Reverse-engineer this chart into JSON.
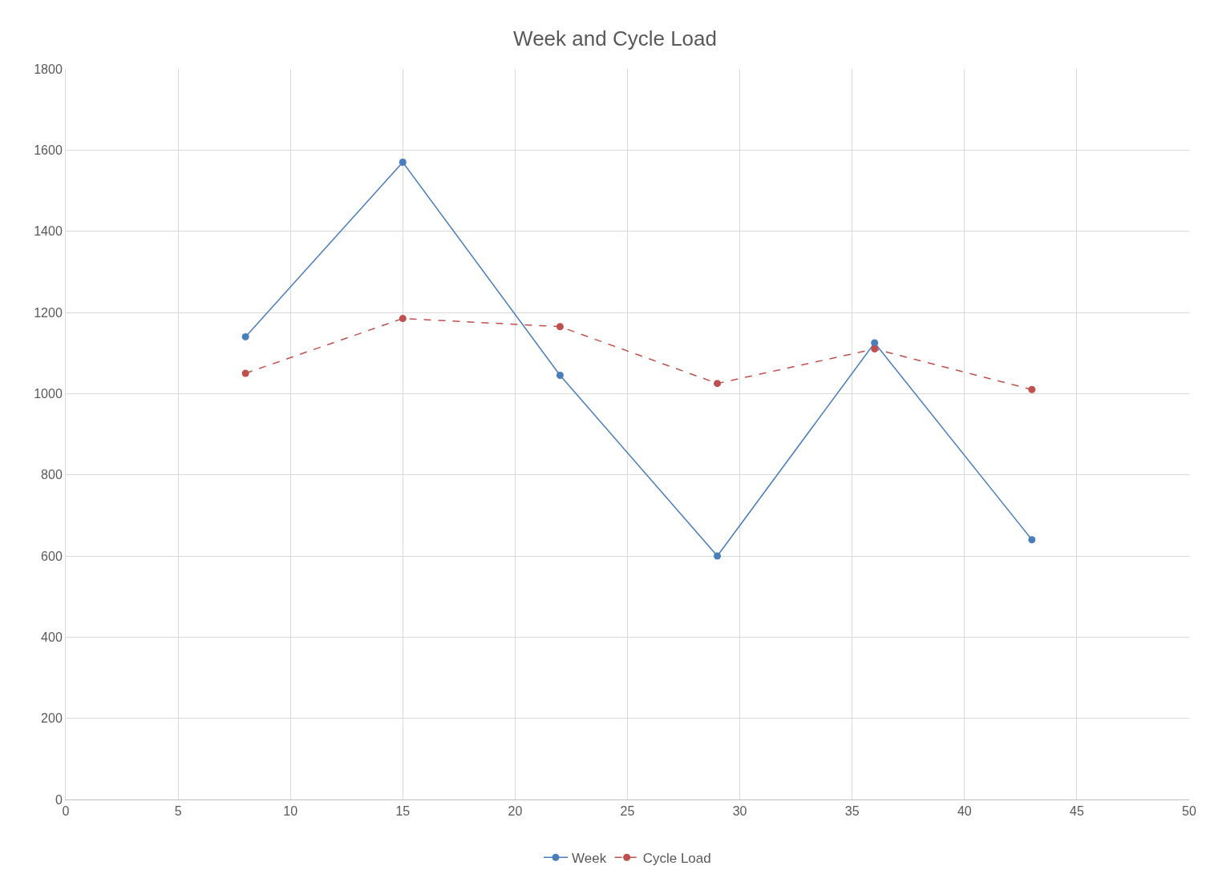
{
  "chart_data": {
    "type": "line",
    "title": "Week and Cycle Load",
    "x": [
      8,
      15,
      22,
      29,
      36,
      43
    ],
    "series": [
      {
        "name": "Week",
        "color": "#4a7ebb",
        "values": [
          1140,
          1570,
          1045,
          600,
          1125,
          640
        ],
        "line_style": "solid"
      },
      {
        "name": "Cycle Load",
        "color": "#c0504d",
        "values": [
          1050,
          1185,
          1165,
          1025,
          1110,
          1010
        ],
        "line_style": "dashed"
      }
    ],
    "xlim": [
      0,
      50
    ],
    "xticks": [
      0,
      5,
      10,
      15,
      20,
      25,
      30,
      35,
      40,
      45,
      50
    ],
    "ylim": [
      0,
      1800
    ],
    "yticks": [
      0,
      200,
      400,
      600,
      800,
      1000,
      1200,
      1400,
      1600,
      1800
    ],
    "grid": true,
    "legend": "bottom",
    "marker": "circle"
  }
}
